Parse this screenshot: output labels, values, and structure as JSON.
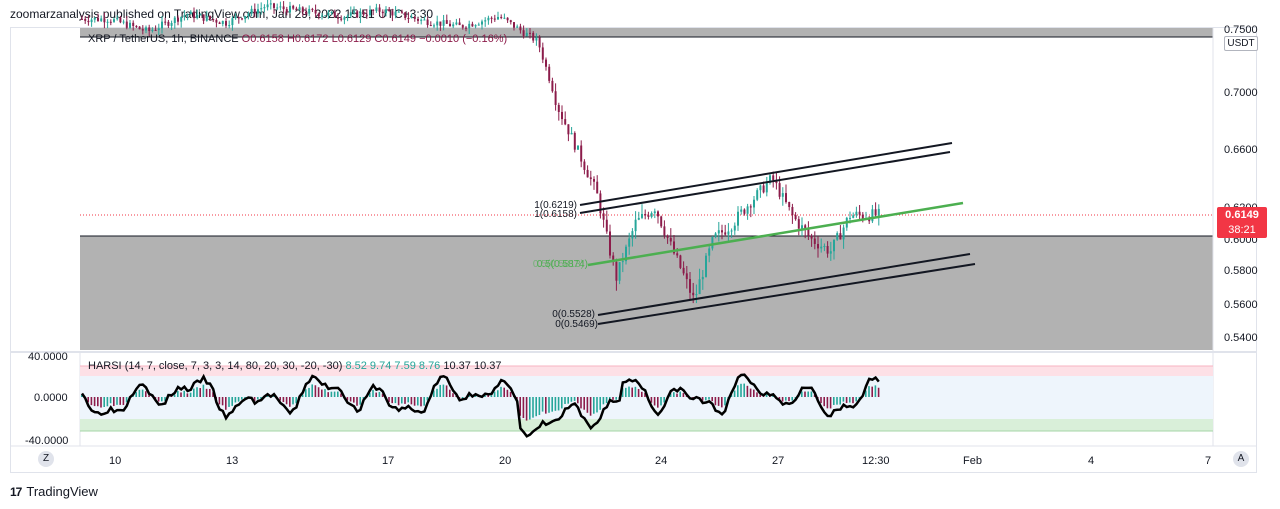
{
  "header": {
    "text": "zoomarzanalysis published on TradingView.com, Jan 29, 2022 15:51 UTC+3:30"
  },
  "symbol_legend": {
    "symbol": "XRP / TetherUS, 1h, BINANCE",
    "o": "O0.6158",
    "h": "H0.6172",
    "l": "L0.6129",
    "c": "C0.6149",
    "chg": "−0.0010 (−0.16%)"
  },
  "currency": "USDT",
  "last_price": {
    "price": "0.6149",
    "countdown": "38:21",
    "color": "#f23645"
  },
  "harsi_legend": {
    "name": "HARSI",
    "params": "(14, 7, close, 7, 3, 3, 14, 80, 20, 30, -20, -30)",
    "v1": "8.52",
    "v2": "9.74",
    "v3": "7.59",
    "v4": "8.76",
    "v5": "10.37",
    "v6": "10.37"
  },
  "fib_labels": {
    "top1": "1(0.6219)",
    "top2": "1(0.6158)",
    "mid1": "0.5(0.5874)",
    "mid2": "0.5(0.5813)",
    "bot1": "0(0.5528)",
    "bot2": "0(0.5469)"
  },
  "footer": {
    "brand": "TradingView",
    "logo": "17"
  },
  "buttons": {
    "zoom": "Z",
    "auto": "A"
  },
  "chart_data": [
    {
      "type": "candlestick",
      "title": "",
      "y_ticks": [
        "0.7500",
        "0.7000",
        "0.6600",
        "0.6200",
        "0.6000",
        "0.5800",
        "0.5600",
        "0.5400"
      ],
      "x_ticks": [
        "10",
        "13",
        "17",
        "20",
        "24",
        "27",
        "12:30",
        "Feb",
        "4",
        "7"
      ],
      "ylim": [
        0.535,
        0.755
      ],
      "close_series": [
        [
          "10",
          0.758
        ],
        [
          "11",
          0.748
        ],
        [
          "12",
          0.762
        ],
        [
          "13",
          0.755
        ],
        [
          "14",
          0.768
        ],
        [
          "16",
          0.76
        ],
        [
          "17",
          0.765
        ],
        [
          "18",
          0.757
        ],
        [
          "19",
          0.752
        ],
        [
          "20",
          0.76
        ],
        [
          "21",
          0.74
        ],
        [
          "21.5",
          0.69
        ],
        [
          "22",
          0.66
        ],
        [
          "22.5",
          0.63
        ],
        [
          "23",
          0.575
        ],
        [
          "23.5",
          0.61
        ],
        [
          "24",
          0.62
        ],
        [
          "24.5",
          0.59
        ],
        [
          "25",
          0.562
        ],
        [
          "25.5",
          0.6
        ],
        [
          "26",
          0.61
        ],
        [
          "26.5",
          0.625
        ],
        [
          "27",
          0.64
        ],
        [
          "27.5",
          0.615
        ],
        [
          "28",
          0.6
        ],
        [
          "28.5",
          0.592
        ],
        [
          "29",
          0.6149
        ]
      ],
      "annotations": [
        "gray supply zone above 0.7450",
        "gray demand zone below 0.6000",
        "ascending channel (black)",
        "green trendline",
        "dotted last-price line 0.6149"
      ],
      "colors": {
        "up": "#26a69a",
        "down": "#8c1c4a",
        "zone": "#b2b2b2",
        "trend": "#4caf50"
      }
    },
    {
      "type": "line",
      "title": "HARSI",
      "y_ticks": [
        "40.0000",
        "0.0000",
        "-40.0000"
      ],
      "ylim": [
        -45,
        45
      ],
      "bands": {
        "overbought": [
          20,
          30
        ],
        "oversold": [
          -20,
          -30
        ]
      }
    }
  ]
}
